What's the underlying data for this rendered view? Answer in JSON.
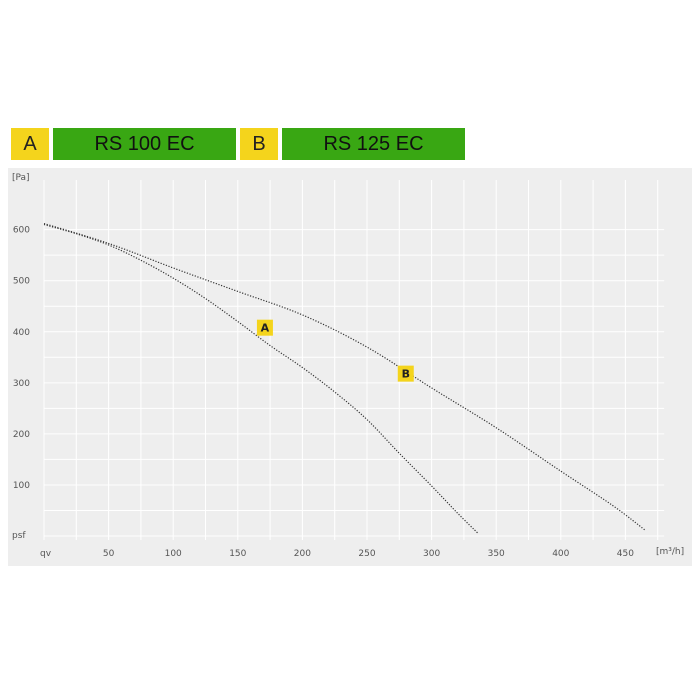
{
  "legend": [
    {
      "key": "A",
      "model": "RS 100 EC"
    },
    {
      "key": "B",
      "model": "RS 125 EC"
    }
  ],
  "colors": {
    "key_bg": "#f4d41c",
    "model_bg": "#39a713",
    "plot_bg": "#eeeeee",
    "grid": "#ffffff",
    "curve": "#333333"
  },
  "chart_data": {
    "type": "line",
    "title": "",
    "xlabel": "[m³/h]",
    "ylabel": "[Pa]",
    "x_axis_symbol": "qv",
    "y_axis_symbol": "psf",
    "xlim": [
      0,
      480
    ],
    "ylim": [
      0,
      640
    ],
    "xticks": [
      50,
      100,
      150,
      200,
      250,
      300,
      350,
      400,
      450
    ],
    "yticks": [
      100,
      200,
      300,
      400,
      500,
      600
    ],
    "grid": true,
    "series": [
      {
        "name": "A",
        "x": [
          0,
          25,
          50,
          75,
          100,
          125,
          150,
          175,
          200,
          225,
          250,
          275,
          300,
          320,
          336
        ],
        "y": [
          610,
          592,
          570,
          540,
          505,
          465,
          420,
          373,
          330,
          282,
          228,
          162,
          98,
          45,
          5
        ],
        "label_at": [
          171,
          408
        ]
      },
      {
        "name": "B",
        "x": [
          0,
          50,
          100,
          150,
          200,
          250,
          300,
          350,
          400,
          440,
          465
        ],
        "y": [
          612,
          573,
          525,
          479,
          433,
          370,
          290,
          212,
          127,
          60,
          12
        ],
        "label_at": [
          280,
          318
        ]
      }
    ]
  }
}
